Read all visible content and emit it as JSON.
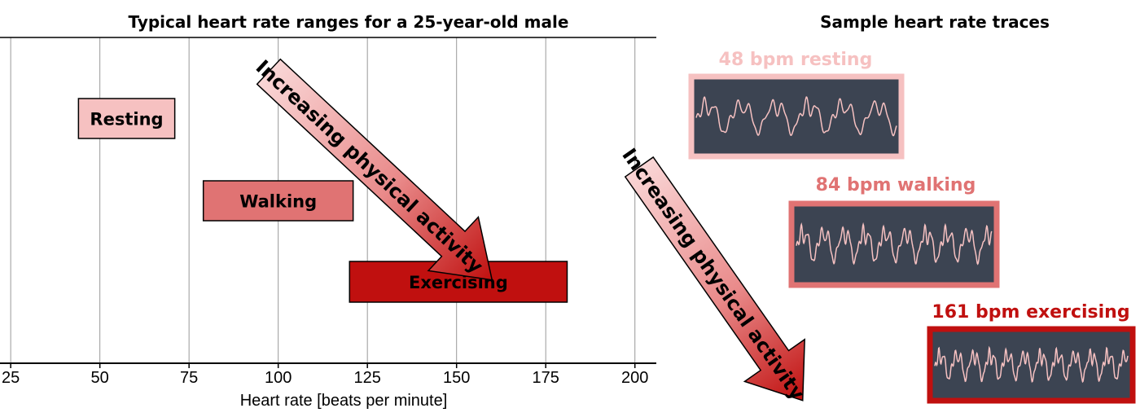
{
  "chart_data": [
    {
      "type": "bar",
      "orientation": "horizontal-range",
      "title": "Typical heart rate ranges for a 25-year-old male",
      "xlabel": "Heart rate [beats per minute]",
      "ylabel": "",
      "xlim": [
        22,
        206
      ],
      "xticks": [
        25,
        50,
        75,
        100,
        125,
        150,
        175,
        200
      ],
      "grid": "vertical",
      "ranges": [
        {
          "label": "Resting",
          "start": 44,
          "end": 71,
          "color": "#f6c1c1"
        },
        {
          "label": "Walking",
          "start": 79,
          "end": 121,
          "color": "#e07373"
        },
        {
          "label": "Exercising",
          "start": 120,
          "end": 181,
          "color": "#c0100f"
        }
      ],
      "annotations": [
        {
          "text": "Increasing physical activity",
          "shape": "arrow",
          "direction": "down-right"
        }
      ]
    },
    {
      "type": "line",
      "title": "Sample heart rate traces",
      "panels": [
        {
          "label": "48 bpm resting",
          "bpm": 48,
          "frame_color": "#f6c1c1",
          "label_color": "#f6c1c1"
        },
        {
          "label": "84 bpm walking",
          "bpm": 84,
          "frame_color": "#e07373",
          "label_color": "#e07373"
        },
        {
          "label": "161 bpm exercising",
          "bpm": 161,
          "frame_color": "#c0100f",
          "label_color": "#c0100f"
        }
      ],
      "trace_color": "#f6c1c1",
      "panel_background": "#3c4452",
      "annotations": [
        {
          "text": "Increasing physical activity",
          "shape": "arrow",
          "direction": "down-right"
        }
      ]
    }
  ]
}
